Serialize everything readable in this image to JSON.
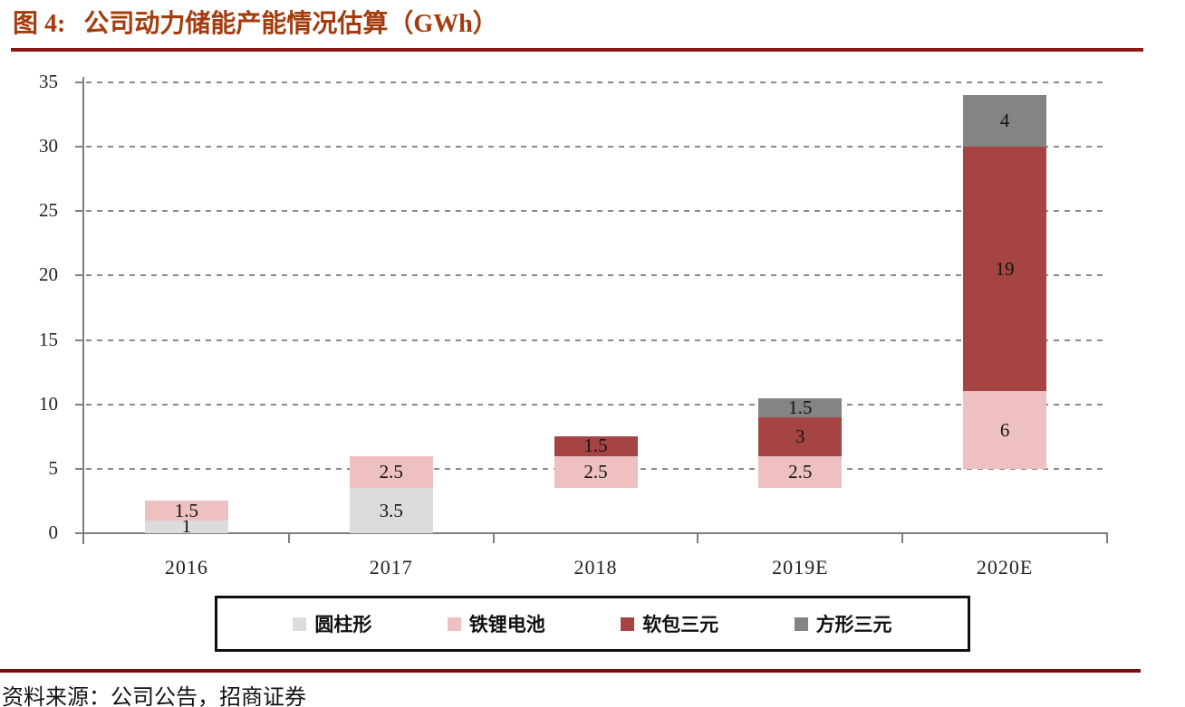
{
  "header": {
    "title_prefix": "图 4:",
    "title_text": "公司动力储能产能情况估算（GWh）",
    "title_color": "#A43B0D",
    "rule_color": "#8C1812"
  },
  "footer": {
    "source_label": "资料来源：公司公告，招商证券",
    "rule_color": "#7C0D0D"
  },
  "chart_data": {
    "type": "bar",
    "stacked": true,
    "title": "图 4: 公司动力储能产能情况估算（GWh）",
    "categories": [
      "2016",
      "2017",
      "2018",
      "2019E",
      "2020E"
    ],
    "series": [
      {
        "name": "圆柱形",
        "color": "#DCDCDC",
        "values": [
          1,
          3.5,
          0,
          0,
          0
        ]
      },
      {
        "name": "铁锂电池",
        "color": "#EEC0C0",
        "values": [
          1.5,
          2.5,
          2.5,
          2.5,
          6
        ]
      },
      {
        "name": "软包三元",
        "color": "#A64343",
        "values": [
          0,
          0,
          1.5,
          3,
          19
        ]
      },
      {
        "name": "方形三元",
        "color": "#848484",
        "values": [
          0,
          0,
          0,
          1.5,
          4
        ]
      }
    ],
    "base_offsets": [
      0,
      0,
      3.5,
      3.5,
      5
    ],
    "ylim": [
      0,
      35
    ],
    "ytick_step": 5,
    "gridlines": "dashed",
    "legend_position": "bottom",
    "axis_color": "#7f7f7f"
  }
}
